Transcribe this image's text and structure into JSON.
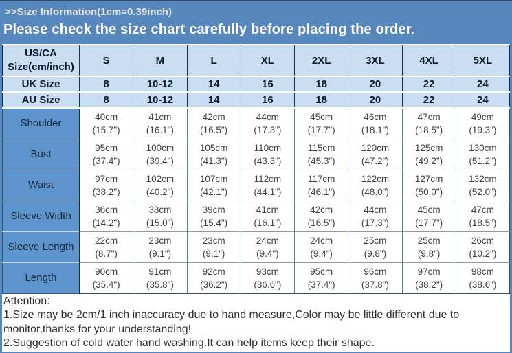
{
  "banner": {
    "title": ">>Size Information(1cm=0.39inch)",
    "subtitle": "Please check the size chart carefully before placing the order."
  },
  "table": {
    "header": {
      "corner_line1": "US/CA",
      "corner_line2": "Size(cm/inch)",
      "sizes": [
        "S",
        "M",
        "L",
        "XL",
        "2XL",
        "3XL",
        "4XL",
        "5XL"
      ]
    },
    "size_rows": [
      {
        "label": "UK Size",
        "values": [
          "8",
          "10-12",
          "14",
          "16",
          "18",
          "20",
          "22",
          "24"
        ]
      },
      {
        "label": "AU Size",
        "values": [
          "8",
          "10-12",
          "14",
          "16",
          "18",
          "20",
          "22",
          "24"
        ]
      }
    ],
    "measure_rows": [
      {
        "label": "Shoulder",
        "cm": [
          "40cm",
          "41cm",
          "42cm",
          "44cm",
          "45cm",
          "46cm",
          "47cm",
          "49cm"
        ],
        "inch": [
          "(15.7\")",
          "(16.1\")",
          "(16.5\")",
          "(17.3\")",
          "(17.7\")",
          "(18.1\")",
          "(18.5\")",
          "(19.3\")"
        ]
      },
      {
        "label": "Bust",
        "cm": [
          "95cm",
          "100cm",
          "105cm",
          "110cm",
          "115cm",
          "120cm",
          "125cm",
          "130cm"
        ],
        "inch": [
          "(37.4\")",
          "(39.4\")",
          "(41.3\")",
          "(43.3\")",
          "(45.3\")",
          "(47.2\")",
          "(49.2\")",
          "(51.2\")"
        ]
      },
      {
        "label": "Waist",
        "cm": [
          "97cm",
          "102cm",
          "107cm",
          "112cm",
          "117cm",
          "122cm",
          "127cm",
          "132cm"
        ],
        "inch": [
          "(38.2\")",
          "(40.2\")",
          "(42.1\")",
          "(44.1\")",
          "(46.1\")",
          "(48.0\")",
          "(50.0\")",
          "(52.0\")"
        ]
      },
      {
        "label": "Sleeve Width",
        "cm": [
          "36cm",
          "38cm",
          "39cm",
          "41cm",
          "42cm",
          "44cm",
          "45cm",
          "47cm"
        ],
        "inch": [
          "(14.2\")",
          "(15.0\")",
          "(15.4\")",
          "(16.1\")",
          "(16.5\")",
          "(17.3\")",
          "(17.7\")",
          "(18.5\")"
        ]
      },
      {
        "label": "Sleeve Length",
        "cm": [
          "22cm",
          "23cm",
          "23cm",
          "24cm",
          "24cm",
          "25cm",
          "25cm",
          "26cm"
        ],
        "inch": [
          "(8.7\")",
          "(9.1\")",
          "(9.1\")",
          "(9.4\")",
          "(9.4\")",
          "(9.8\")",
          "(9.8\")",
          "(10.2\")"
        ]
      },
      {
        "label": "Length",
        "cm": [
          "90cm",
          "91cm",
          "92cm",
          "93cm",
          "95cm",
          "96cm",
          "97cm",
          "98cm"
        ],
        "inch": [
          "(35.4\")",
          "(35.8\")",
          "(36.2\")",
          "(36.6\")",
          "(37.4\")",
          "(37.8\")",
          "(38.2\")",
          "(38.6\")"
        ]
      }
    ]
  },
  "attention": {
    "heading": "Attention:",
    "notes": [
      "1.Size may be 2cm/1 inch inaccuracy due to hand measure,Color may be little different due to monitor,thanks for your understanding!",
      "2.Suggestion of cold water hand washing.It can help items keep their shape."
    ]
  },
  "colors": {
    "banner_bg": "#5687bd",
    "banner_title": "#e4e4e4",
    "banner_subtitle": "#ffffff",
    "header_cell_bg": "#cadef1",
    "header_text": "#0b1830",
    "label_cell_bg": "#5e94cc",
    "label_text": "#15273f",
    "data_text": "#3f3f3f",
    "dark_border": "#17304d",
    "top_border": "#2c4b70"
  }
}
